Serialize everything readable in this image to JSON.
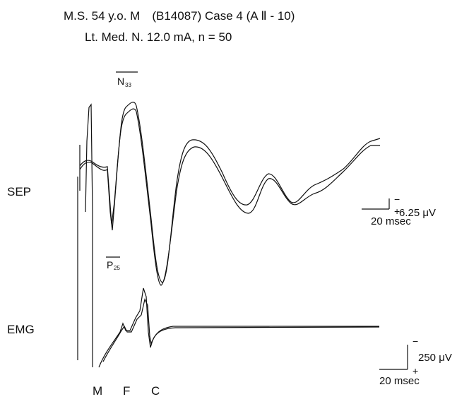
{
  "header": {
    "title": "M.S. 54 y.o. M　(B14087) Case 4 (A Ⅱ - 10)",
    "subtitle": "Lt. Med. N. 12.0 mA, n = 50"
  },
  "traces": {
    "sep_label": "SEP",
    "emg_label": "EMG"
  },
  "peaks": {
    "n_letter": "N",
    "n_sub": "33",
    "p_letter": "P",
    "p_sub": "25"
  },
  "markers": [
    "M",
    "F",
    "C"
  ],
  "sep_scale": {
    "minus": "−",
    "plus": "+",
    "amplitude": "6.25 μV",
    "time": "20 msec"
  },
  "emg_scale": {
    "minus": "−",
    "plus": "+",
    "amplitude": "250 μV",
    "time": "20 msec"
  }
}
